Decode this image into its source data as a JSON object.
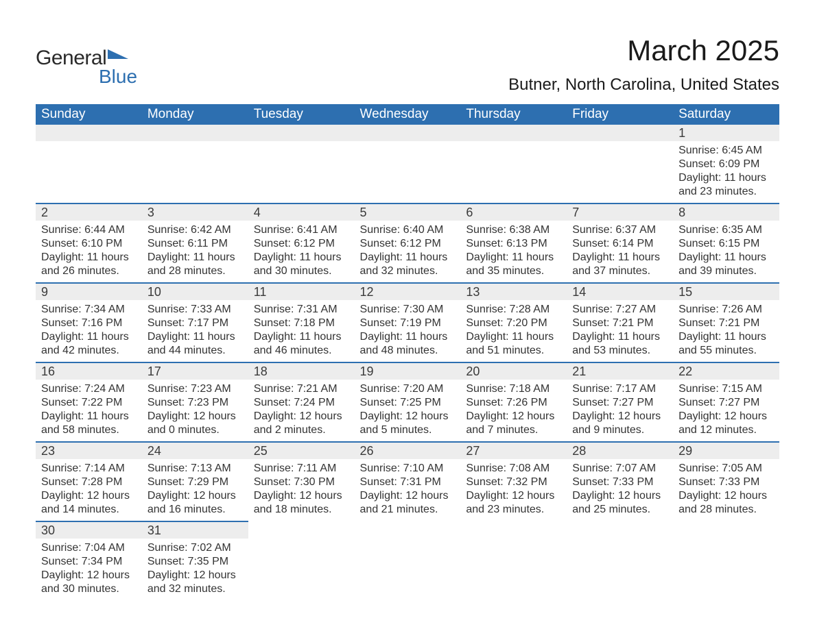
{
  "logo": {
    "text1": "General",
    "text2": "Blue",
    "flag_color": "#2d6fb0"
  },
  "title": "March 2025",
  "location": "Butner, North Carolina, United States",
  "header_bg": "#2d6fb0",
  "header_fg": "#ffffff",
  "daynum_bg": "#ededed",
  "rule_color": "#2d6fb0",
  "weekdays": [
    "Sunday",
    "Monday",
    "Tuesday",
    "Wednesday",
    "Thursday",
    "Friday",
    "Saturday"
  ],
  "weeks": [
    [
      null,
      null,
      null,
      null,
      null,
      null,
      {
        "n": "1",
        "sr": "Sunrise: 6:45 AM",
        "ss": "Sunset: 6:09 PM",
        "d1": "Daylight: 11 hours",
        "d2": "and 23 minutes."
      }
    ],
    [
      {
        "n": "2",
        "sr": "Sunrise: 6:44 AM",
        "ss": "Sunset: 6:10 PM",
        "d1": "Daylight: 11 hours",
        "d2": "and 26 minutes."
      },
      {
        "n": "3",
        "sr": "Sunrise: 6:42 AM",
        "ss": "Sunset: 6:11 PM",
        "d1": "Daylight: 11 hours",
        "d2": "and 28 minutes."
      },
      {
        "n": "4",
        "sr": "Sunrise: 6:41 AM",
        "ss": "Sunset: 6:12 PM",
        "d1": "Daylight: 11 hours",
        "d2": "and 30 minutes."
      },
      {
        "n": "5",
        "sr": "Sunrise: 6:40 AM",
        "ss": "Sunset: 6:12 PM",
        "d1": "Daylight: 11 hours",
        "d2": "and 32 minutes."
      },
      {
        "n": "6",
        "sr": "Sunrise: 6:38 AM",
        "ss": "Sunset: 6:13 PM",
        "d1": "Daylight: 11 hours",
        "d2": "and 35 minutes."
      },
      {
        "n": "7",
        "sr": "Sunrise: 6:37 AM",
        "ss": "Sunset: 6:14 PM",
        "d1": "Daylight: 11 hours",
        "d2": "and 37 minutes."
      },
      {
        "n": "8",
        "sr": "Sunrise: 6:35 AM",
        "ss": "Sunset: 6:15 PM",
        "d1": "Daylight: 11 hours",
        "d2": "and 39 minutes."
      }
    ],
    [
      {
        "n": "9",
        "sr": "Sunrise: 7:34 AM",
        "ss": "Sunset: 7:16 PM",
        "d1": "Daylight: 11 hours",
        "d2": "and 42 minutes."
      },
      {
        "n": "10",
        "sr": "Sunrise: 7:33 AM",
        "ss": "Sunset: 7:17 PM",
        "d1": "Daylight: 11 hours",
        "d2": "and 44 minutes."
      },
      {
        "n": "11",
        "sr": "Sunrise: 7:31 AM",
        "ss": "Sunset: 7:18 PM",
        "d1": "Daylight: 11 hours",
        "d2": "and 46 minutes."
      },
      {
        "n": "12",
        "sr": "Sunrise: 7:30 AM",
        "ss": "Sunset: 7:19 PM",
        "d1": "Daylight: 11 hours",
        "d2": "and 48 minutes."
      },
      {
        "n": "13",
        "sr": "Sunrise: 7:28 AM",
        "ss": "Sunset: 7:20 PM",
        "d1": "Daylight: 11 hours",
        "d2": "and 51 minutes."
      },
      {
        "n": "14",
        "sr": "Sunrise: 7:27 AM",
        "ss": "Sunset: 7:21 PM",
        "d1": "Daylight: 11 hours",
        "d2": "and 53 minutes."
      },
      {
        "n": "15",
        "sr": "Sunrise: 7:26 AM",
        "ss": "Sunset: 7:21 PM",
        "d1": "Daylight: 11 hours",
        "d2": "and 55 minutes."
      }
    ],
    [
      {
        "n": "16",
        "sr": "Sunrise: 7:24 AM",
        "ss": "Sunset: 7:22 PM",
        "d1": "Daylight: 11 hours",
        "d2": "and 58 minutes."
      },
      {
        "n": "17",
        "sr": "Sunrise: 7:23 AM",
        "ss": "Sunset: 7:23 PM",
        "d1": "Daylight: 12 hours",
        "d2": "and 0 minutes."
      },
      {
        "n": "18",
        "sr": "Sunrise: 7:21 AM",
        "ss": "Sunset: 7:24 PM",
        "d1": "Daylight: 12 hours",
        "d2": "and 2 minutes."
      },
      {
        "n": "19",
        "sr": "Sunrise: 7:20 AM",
        "ss": "Sunset: 7:25 PM",
        "d1": "Daylight: 12 hours",
        "d2": "and 5 minutes."
      },
      {
        "n": "20",
        "sr": "Sunrise: 7:18 AM",
        "ss": "Sunset: 7:26 PM",
        "d1": "Daylight: 12 hours",
        "d2": "and 7 minutes."
      },
      {
        "n": "21",
        "sr": "Sunrise: 7:17 AM",
        "ss": "Sunset: 7:27 PM",
        "d1": "Daylight: 12 hours",
        "d2": "and 9 minutes."
      },
      {
        "n": "22",
        "sr": "Sunrise: 7:15 AM",
        "ss": "Sunset: 7:27 PM",
        "d1": "Daylight: 12 hours",
        "d2": "and 12 minutes."
      }
    ],
    [
      {
        "n": "23",
        "sr": "Sunrise: 7:14 AM",
        "ss": "Sunset: 7:28 PM",
        "d1": "Daylight: 12 hours",
        "d2": "and 14 minutes."
      },
      {
        "n": "24",
        "sr": "Sunrise: 7:13 AM",
        "ss": "Sunset: 7:29 PM",
        "d1": "Daylight: 12 hours",
        "d2": "and 16 minutes."
      },
      {
        "n": "25",
        "sr": "Sunrise: 7:11 AM",
        "ss": "Sunset: 7:30 PM",
        "d1": "Daylight: 12 hours",
        "d2": "and 18 minutes."
      },
      {
        "n": "26",
        "sr": "Sunrise: 7:10 AM",
        "ss": "Sunset: 7:31 PM",
        "d1": "Daylight: 12 hours",
        "d2": "and 21 minutes."
      },
      {
        "n": "27",
        "sr": "Sunrise: 7:08 AM",
        "ss": "Sunset: 7:32 PM",
        "d1": "Daylight: 12 hours",
        "d2": "and 23 minutes."
      },
      {
        "n": "28",
        "sr": "Sunrise: 7:07 AM",
        "ss": "Sunset: 7:33 PM",
        "d1": "Daylight: 12 hours",
        "d2": "and 25 minutes."
      },
      {
        "n": "29",
        "sr": "Sunrise: 7:05 AM",
        "ss": "Sunset: 7:33 PM",
        "d1": "Daylight: 12 hours",
        "d2": "and 28 minutes."
      }
    ],
    [
      {
        "n": "30",
        "sr": "Sunrise: 7:04 AM",
        "ss": "Sunset: 7:34 PM",
        "d1": "Daylight: 12 hours",
        "d2": "and 30 minutes."
      },
      {
        "n": "31",
        "sr": "Sunrise: 7:02 AM",
        "ss": "Sunset: 7:35 PM",
        "d1": "Daylight: 12 hours",
        "d2": "and 32 minutes."
      },
      null,
      null,
      null,
      null,
      null
    ]
  ]
}
